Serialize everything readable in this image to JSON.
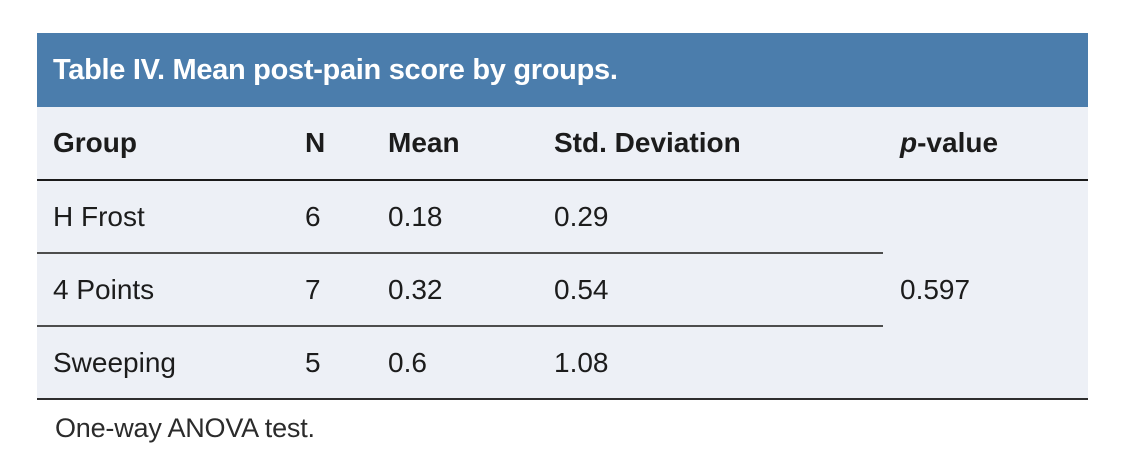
{
  "title": "Table IV. Mean post-pain score by groups.",
  "colors": {
    "title_bar_bg": "#4b7dac",
    "title_text_color": "#ffffff",
    "body_bg": "#edf0f6"
  },
  "columns": {
    "group": "Group",
    "n": "N",
    "mean": "Mean",
    "std": "Std. Deviation",
    "pvalue_italic": "p",
    "pvalue_rest": "-value"
  },
  "rows": [
    {
      "group": "H Frost",
      "n": "6",
      "mean": "0.18",
      "std": "0.29"
    },
    {
      "group": "4 Points",
      "n": "7",
      "mean": "0.32",
      "std": "0.54"
    },
    {
      "group": "Sweeping",
      "n": "5",
      "mean": "0.6",
      "std": "1.08"
    }
  ],
  "pvalue": "0.597",
  "footnote": "One-way ANOVA test."
}
